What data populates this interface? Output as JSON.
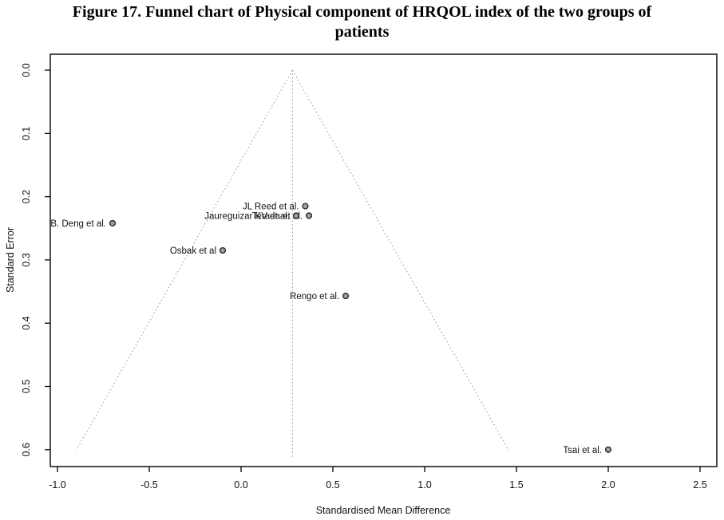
{
  "figure_title": {
    "line1": "Figure 17. Funnel chart of Physical component of HRQOL index of the two groups of",
    "line2": "patients"
  },
  "chart_data": {
    "type": "scatter",
    "subtype": "funnel-plot",
    "title": "Funnel chart of Physical component of HRQOL index of the two groups of patients",
    "xlabel": "Standardised Mean Difference",
    "ylabel": "Standard Error",
    "xlim": [
      -1.15,
      2.6
    ],
    "se_axis_range": [
      0.0,
      0.627
    ],
    "y_axis_inverted": true,
    "x_ticks": [
      -1.0,
      -0.5,
      0.0,
      0.5,
      1.0,
      1.5,
      2.0,
      2.5
    ],
    "y_ticks": [
      0.0,
      0.1,
      0.2,
      0.3,
      0.4,
      0.5,
      0.6
    ],
    "grid": false,
    "legend": "none",
    "funnel": {
      "center_smd": 0.28,
      "ci_multiplier": 1.96,
      "line_end_se": 0.601,
      "vertical_line_end_se": 0.612,
      "line_style": "dotted",
      "line_color": "#999999"
    },
    "points": [
      {
        "label": "B. Deng et al.",
        "smd": -0.7,
        "se": 0.242
      },
      {
        "label": "Osbak et al",
        "smd": -0.1,
        "se": 0.285
      },
      {
        "label": "JL Reed et al.",
        "smd": 0.35,
        "se": 0.215
      },
      {
        "label": "Jaureguizar KV et al.",
        "smd": 0.3,
        "se": 0.23
      },
      {
        "label": "Terada et al.",
        "smd": 0.37,
        "se": 0.23
      },
      {
        "label": "Rengo et al.",
        "smd": 0.57,
        "se": 0.357
      },
      {
        "label": "Tsai et al.",
        "smd": 2.0,
        "se": 0.6
      }
    ],
    "point_style": {
      "fill": "#9e9e9e",
      "stroke": "#222222",
      "shape": "circle"
    },
    "axis_color": "#000000",
    "background": "#ffffff"
  }
}
